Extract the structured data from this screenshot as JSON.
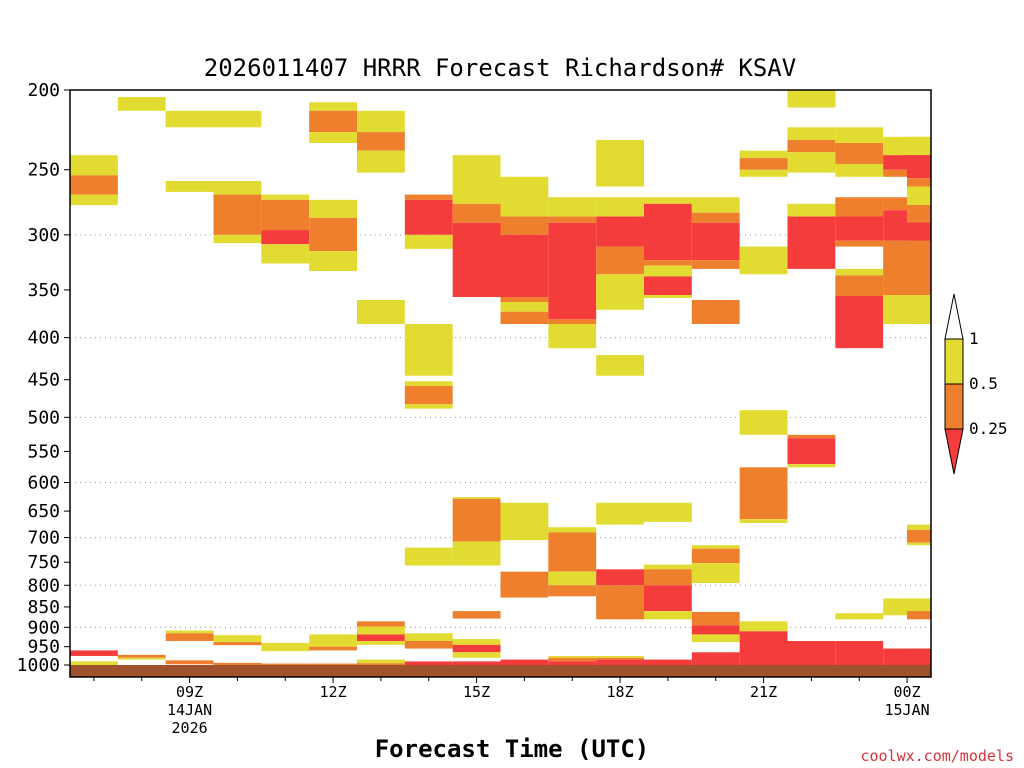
{
  "chart_data": {
    "type": "heatmap",
    "title": "2026011407 HRRR Forecast Richardson# KSAV",
    "xlabel": "Forecast Time (UTC)",
    "ylabel": "",
    "credit": "coolwx.com/models",
    "x_range_hours": [
      6.5,
      24.5
    ],
    "y_range_hpa": [
      200,
      1000
    ],
    "y_scale": "log",
    "y_ticks": [
      200,
      250,
      300,
      350,
      400,
      450,
      500,
      550,
      600,
      650,
      700,
      750,
      800,
      850,
      900,
      950,
      1000
    ],
    "y_gridlines": [
      300,
      400,
      500,
      600,
      700,
      800,
      900
    ],
    "x_ticks": [
      {
        "hour": 9,
        "lines": [
          "09Z",
          "14JAN",
          "2026"
        ]
      },
      {
        "hour": 12,
        "lines": [
          "12Z"
        ]
      },
      {
        "hour": 15,
        "lines": [
          "15Z"
        ]
      },
      {
        "hour": 18,
        "lines": [
          "18Z"
        ]
      },
      {
        "hour": 21,
        "lines": [
          "21Z"
        ]
      },
      {
        "hour": 24,
        "lines": [
          "00Z",
          "15JAN"
        ]
      }
    ],
    "legend": {
      "placement": "right",
      "levels": [
        "1",
        "0.5",
        "0.25"
      ],
      "bins": [
        {
          "range": "< 0.25",
          "color": "#f53c3c"
        },
        {
          "range": "0.25 - 0.5",
          "color": "#ee7f2d"
        },
        {
          "range": "0.5 - 1",
          "color": "#e2dc32"
        },
        {
          "range": "> 1",
          "color": "#ffffff"
        }
      ]
    },
    "colors": {
      "lt025": "#f53c3c",
      "lt05": "#ee7f2d",
      "lt1": "#e2dc32",
      "ground": "#a0522d"
    },
    "surface_pressure_hpa": 1010,
    "columns": [
      {
        "hour": 7,
        "cells": [
          [
            240,
            254,
            "lt1"
          ],
          [
            254,
            268,
            "lt05"
          ],
          [
            268,
            276,
            "lt1"
          ],
          [
            960,
            975,
            "lt025"
          ],
          [
            990,
            1000,
            "lt1"
          ]
        ]
      },
      {
        "hour": 8,
        "cells": [
          [
            204,
            212,
            "lt1"
          ],
          [
            972,
            980,
            "lt05"
          ],
          [
            980,
            985,
            "lt1"
          ]
        ]
      },
      {
        "hour": 9,
        "cells": [
          [
            212,
            222,
            "lt1"
          ],
          [
            258,
            266,
            "lt1"
          ],
          [
            908,
            915,
            "lt1"
          ],
          [
            915,
            935,
            "lt05"
          ],
          [
            987,
            998,
            "lt05"
          ]
        ]
      },
      {
        "hour": 10,
        "cells": [
          [
            212,
            222,
            "lt1"
          ],
          [
            258,
            268,
            "lt1"
          ],
          [
            268,
            300,
            "lt05"
          ],
          [
            300,
            307,
            "lt1"
          ],
          [
            920,
            938,
            "lt1"
          ],
          [
            938,
            946,
            "lt05"
          ],
          [
            994,
            1002,
            "lt05"
          ]
        ]
      },
      {
        "hour": 11,
        "cells": [
          [
            268,
            272,
            "lt1"
          ],
          [
            272,
            296,
            "lt05"
          ],
          [
            296,
            308,
            "lt025"
          ],
          [
            308,
            325,
            "lt1"
          ],
          [
            940,
            962,
            "lt1"
          ],
          [
            996,
            1002,
            "lt05"
          ]
        ]
      },
      {
        "hour": 12,
        "cells": [
          [
            207,
            212,
            "lt1"
          ],
          [
            212,
            225,
            "lt05"
          ],
          [
            225,
            232,
            "lt1"
          ],
          [
            272,
            286,
            "lt1"
          ],
          [
            286,
            314,
            "lt05"
          ],
          [
            314,
            332,
            "lt1"
          ],
          [
            918,
            950,
            "lt1"
          ],
          [
            950,
            960,
            "lt05"
          ],
          [
            996,
            1002,
            "lt05"
          ]
        ]
      },
      {
        "hour": 13,
        "cells": [
          [
            212,
            225,
            "lt1"
          ],
          [
            225,
            237,
            "lt05"
          ],
          [
            237,
            252,
            "lt1"
          ],
          [
            360,
            385,
            "lt1"
          ],
          [
            885,
            898,
            "lt05"
          ],
          [
            898,
            918,
            "lt1"
          ],
          [
            918,
            935,
            "lt025"
          ],
          [
            935,
            945,
            "lt1"
          ],
          [
            985,
            995,
            "lt1"
          ],
          [
            995,
            1002,
            "lt05"
          ]
        ]
      },
      {
        "hour": 14,
        "cells": [
          [
            268,
            272,
            "lt05"
          ],
          [
            272,
            300,
            "lt025"
          ],
          [
            300,
            312,
            "lt1"
          ],
          [
            385,
            445,
            "lt1"
          ],
          [
            452,
            458,
            "lt1"
          ],
          [
            458,
            482,
            "lt05"
          ],
          [
            482,
            488,
            "lt1"
          ],
          [
            720,
            757,
            "lt1"
          ],
          [
            915,
            935,
            "lt1"
          ],
          [
            935,
            955,
            "lt05"
          ],
          [
            990,
            1002,
            "lt025"
          ]
        ]
      },
      {
        "hour": 15,
        "cells": [
          [
            240,
            275,
            "lt1"
          ],
          [
            275,
            290,
            "lt05"
          ],
          [
            290,
            357,
            "lt025"
          ],
          [
            625,
            628,
            "lt1"
          ],
          [
            628,
            708,
            "lt05"
          ],
          [
            708,
            757,
            "lt1"
          ],
          [
            860,
            878,
            "lt05"
          ],
          [
            930,
            945,
            "lt1"
          ],
          [
            945,
            965,
            "lt025"
          ],
          [
            965,
            980,
            "lt1"
          ],
          [
            990,
            1002,
            "lt025"
          ]
        ]
      },
      {
        "hour": 16,
        "cells": [
          [
            255,
            285,
            "lt1"
          ],
          [
            285,
            300,
            "lt05"
          ],
          [
            300,
            357,
            "lt025"
          ],
          [
            357,
            362,
            "lt05"
          ],
          [
            362,
            372,
            "lt1"
          ],
          [
            372,
            385,
            "lt05"
          ],
          [
            635,
            705,
            "lt1"
          ],
          [
            770,
            828,
            "lt05"
          ],
          [
            985,
            1002,
            "lt025"
          ]
        ]
      },
      {
        "hour": 17,
        "cells": [
          [
            270,
            285,
            "lt1"
          ],
          [
            285,
            290,
            "lt05"
          ],
          [
            290,
            380,
            "lt025"
          ],
          [
            380,
            385,
            "lt05"
          ],
          [
            385,
            412,
            "lt1"
          ],
          [
            680,
            690,
            "lt1"
          ],
          [
            690,
            770,
            "lt05"
          ],
          [
            770,
            800,
            "lt1"
          ],
          [
            800,
            825,
            "lt05"
          ],
          [
            975,
            980,
            "lt1"
          ],
          [
            980,
            990,
            "lt05"
          ],
          [
            990,
            1002,
            "lt025"
          ]
        ]
      },
      {
        "hour": 18,
        "cells": [
          [
            230,
            262,
            "lt1"
          ],
          [
            270,
            285,
            "lt1"
          ],
          [
            285,
            310,
            "lt025"
          ],
          [
            310,
            335,
            "lt05"
          ],
          [
            335,
            370,
            "lt1"
          ],
          [
            420,
            445,
            "lt1"
          ],
          [
            635,
            675,
            "lt1"
          ],
          [
            765,
            800,
            "lt025"
          ],
          [
            800,
            880,
            "lt05"
          ],
          [
            975,
            980,
            "lt1"
          ],
          [
            980,
            985,
            "lt05"
          ],
          [
            985,
            1002,
            "lt025"
          ]
        ]
      },
      {
        "hour": 19,
        "cells": [
          [
            270,
            275,
            "lt1"
          ],
          [
            275,
            322,
            "lt025"
          ],
          [
            322,
            327,
            "lt05"
          ],
          [
            327,
            337,
            "lt1"
          ],
          [
            337,
            355,
            "lt025"
          ],
          [
            355,
            358,
            "lt1"
          ],
          [
            635,
            670,
            "lt1"
          ],
          [
            755,
            765,
            "lt1"
          ],
          [
            765,
            800,
            "lt05"
          ],
          [
            800,
            860,
            "lt025"
          ],
          [
            860,
            880,
            "lt1"
          ],
          [
            985,
            1002,
            "lt025"
          ]
        ]
      },
      {
        "hour": 20,
        "cells": [
          [
            270,
            282,
            "lt1"
          ],
          [
            282,
            290,
            "lt05"
          ],
          [
            290,
            322,
            "lt025"
          ],
          [
            322,
            330,
            "lt05"
          ],
          [
            360,
            385,
            "lt05"
          ],
          [
            715,
            722,
            "lt1"
          ],
          [
            722,
            752,
            "lt05"
          ],
          [
            752,
            795,
            "lt1"
          ],
          [
            862,
            895,
            "lt05"
          ],
          [
            895,
            918,
            "lt025"
          ],
          [
            918,
            938,
            "lt1"
          ],
          [
            965,
            1002,
            "lt025"
          ]
        ]
      },
      {
        "hour": 21,
        "cells": [
          [
            237,
            242,
            "lt1"
          ],
          [
            242,
            250,
            "lt05"
          ],
          [
            250,
            255,
            "lt1"
          ],
          [
            310,
            335,
            "lt1"
          ],
          [
            490,
            525,
            "lt1"
          ],
          [
            575,
            665,
            "lt05"
          ],
          [
            665,
            672,
            "lt1"
          ],
          [
            885,
            910,
            "lt1"
          ],
          [
            910,
            1002,
            "lt025"
          ]
        ]
      },
      {
        "hour": 22,
        "cells": [
          [
            200,
            206,
            "lt025"
          ],
          [
            206,
            210,
            "lt05"
          ],
          [
            200,
            210,
            "lt1"
          ],
          [
            222,
            230,
            "lt1"
          ],
          [
            230,
            238,
            "lt05"
          ],
          [
            238,
            252,
            "lt1"
          ],
          [
            275,
            285,
            "lt1"
          ],
          [
            285,
            330,
            "lt025"
          ],
          [
            525,
            530,
            "lt05"
          ],
          [
            530,
            570,
            "lt025"
          ],
          [
            570,
            575,
            "lt1"
          ],
          [
            935,
            1002,
            "lt025"
          ]
        ]
      },
      {
        "hour": 23,
        "cells": [
          [
            222,
            232,
            "lt1"
          ],
          [
            232,
            246,
            "lt05"
          ],
          [
            246,
            255,
            "lt1"
          ],
          [
            270,
            285,
            "lt05"
          ],
          [
            285,
            305,
            "lt025"
          ],
          [
            305,
            310,
            "lt05"
          ],
          [
            330,
            336,
            "lt1"
          ],
          [
            336,
            356,
            "lt05"
          ],
          [
            356,
            412,
            "lt025"
          ],
          [
            865,
            880,
            "lt1"
          ],
          [
            935,
            1002,
            "lt025"
          ]
        ]
      },
      {
        "hour": 24,
        "cells": [
          [
            228,
            240,
            "lt1"
          ],
          [
            240,
            250,
            "lt025"
          ],
          [
            250,
            255,
            "lt05"
          ],
          [
            270,
            280,
            "lt05"
          ],
          [
            280,
            305,
            "lt025"
          ],
          [
            305,
            355,
            "lt05"
          ],
          [
            355,
            385,
            "lt1"
          ],
          [
            830,
            870,
            "lt1"
          ],
          [
            955,
            1002,
            "lt025"
          ]
        ]
      }
    ],
    "edge_column": {
      "hour": 24.5,
      "cells": [
        [
          228,
          240,
          "lt1"
        ],
        [
          240,
          256,
          "lt025"
        ],
        [
          256,
          262,
          "lt05"
        ],
        [
          262,
          270,
          "lt1"
        ],
        [
          270,
          276,
          "lt1"
        ],
        [
          276,
          290,
          "lt05"
        ],
        [
          290,
          305,
          "lt025"
        ],
        [
          305,
          355,
          "lt05"
        ],
        [
          355,
          385,
          "lt1"
        ],
        [
          675,
          685,
          "lt1"
        ],
        [
          685,
          710,
          "lt05"
        ],
        [
          710,
          715,
          "lt1"
        ],
        [
          860,
          880,
          "lt05"
        ],
        [
          955,
          1002,
          "lt025"
        ]
      ]
    }
  }
}
